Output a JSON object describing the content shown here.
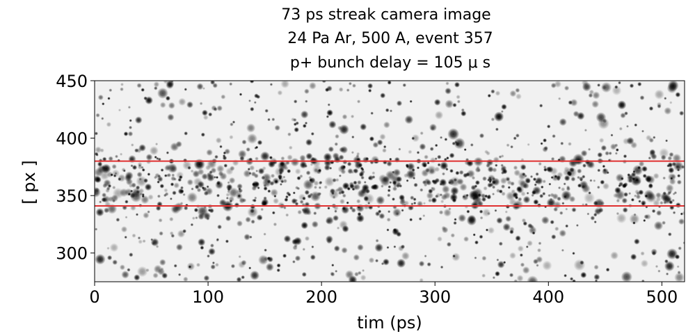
{
  "chart_data": {
    "type": "image",
    "title": [
      "73 ps streak camera image",
      "24 Pa Ar, 500 A, event 357",
      "p+ bunch delay = 105 μ s"
    ],
    "xlabel": "tim (ps)",
    "ylabel": "[ px ]",
    "xlim": [
      0,
      520
    ],
    "ylim": [
      275,
      450
    ],
    "xticks": [
      0,
      100,
      200,
      300,
      400,
      500
    ],
    "yticks": [
      300,
      350,
      400,
      450
    ],
    "hlines": [
      380,
      341
    ],
    "hline_color": "#e03030"
  }
}
